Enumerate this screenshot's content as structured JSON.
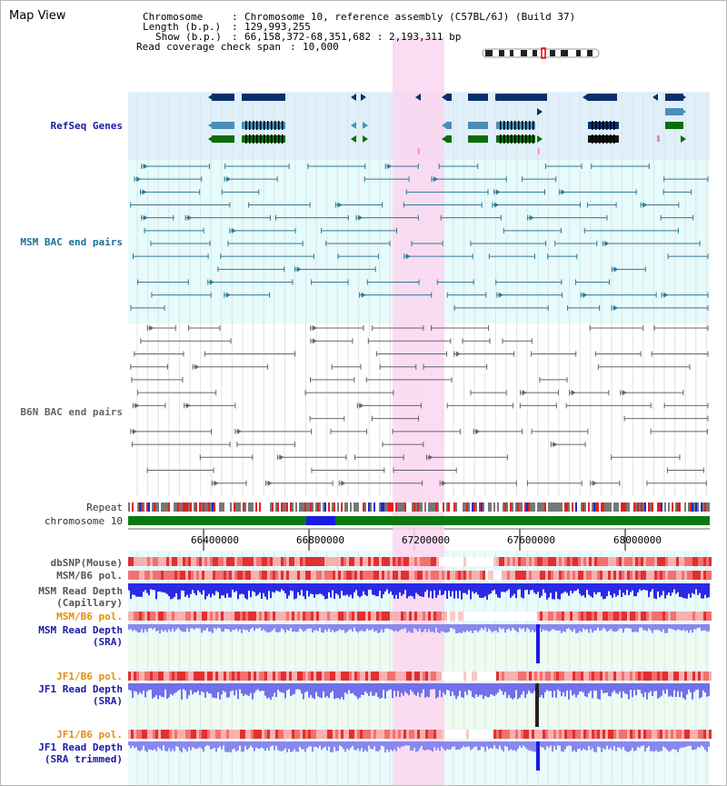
{
  "app": {
    "title": "Map View"
  },
  "header": {
    "chromosome_label": "Chromosome",
    "chromosome_value": "Chromosome 10, reference assembly (C57BL/6J) (Build 37)",
    "length_label": "Length (b.p.)",
    "length_value": "129,993,255",
    "show_label": "Show (b.p.)",
    "show_value": "66,158,372-68,351,682 : 2,193,311 bp",
    "coverage_label": "Read coverage check span",
    "coverage_value": "10,000"
  },
  "tracks": {
    "refseq": "RefSeq Genes",
    "msm_bac": "MSM BAC end pairs",
    "b6n_bac": "B6N BAC end pairs",
    "repeat": "Repeat",
    "chromosome": "chromosome 10",
    "dbsnp": "dbSNP(Mouse)",
    "msm_b6_pol": "MSM/B6 pol.",
    "msm_depth_cap_1": "MSM Read Depth",
    "msm_depth_cap_2": "(Capillary)",
    "msm_b6_pol_2": "MSM/B6 pol.",
    "msm_depth_sra_1": "MSM Read Depth",
    "msm_depth_sra_2": "(SRA)",
    "jf1_pol_1": "JF1/B6 pol.",
    "jf1_depth_sra_1": "JF1 Read Depth",
    "jf1_depth_sra_2": "(SRA)",
    "jf1_pol_2": "JF1/B6 pol.",
    "jf1_depth_trim_1": "JF1 Read Depth",
    "jf1_depth_trim_2": "(SRA trimmed)"
  },
  "ruler": {
    "ticks": [
      "66400000",
      "66800000",
      "67200000",
      "67600000",
      "68000000"
    ]
  },
  "colors": {
    "refseq_bg": "#dff0fa",
    "msm_bg": "#e6fbfb",
    "highlight": "#fbd6f0",
    "gene_dark": "#0b2f6b",
    "gene_mid": "#4a8fb8",
    "gene_green": "#0a6e0a",
    "msm_line": "#2f7a96",
    "b6n_line": "#666666",
    "chrom_green": "#0a7a10",
    "depth_blue": "#2a2ae6",
    "snp_red": "#e04040"
  }
}
